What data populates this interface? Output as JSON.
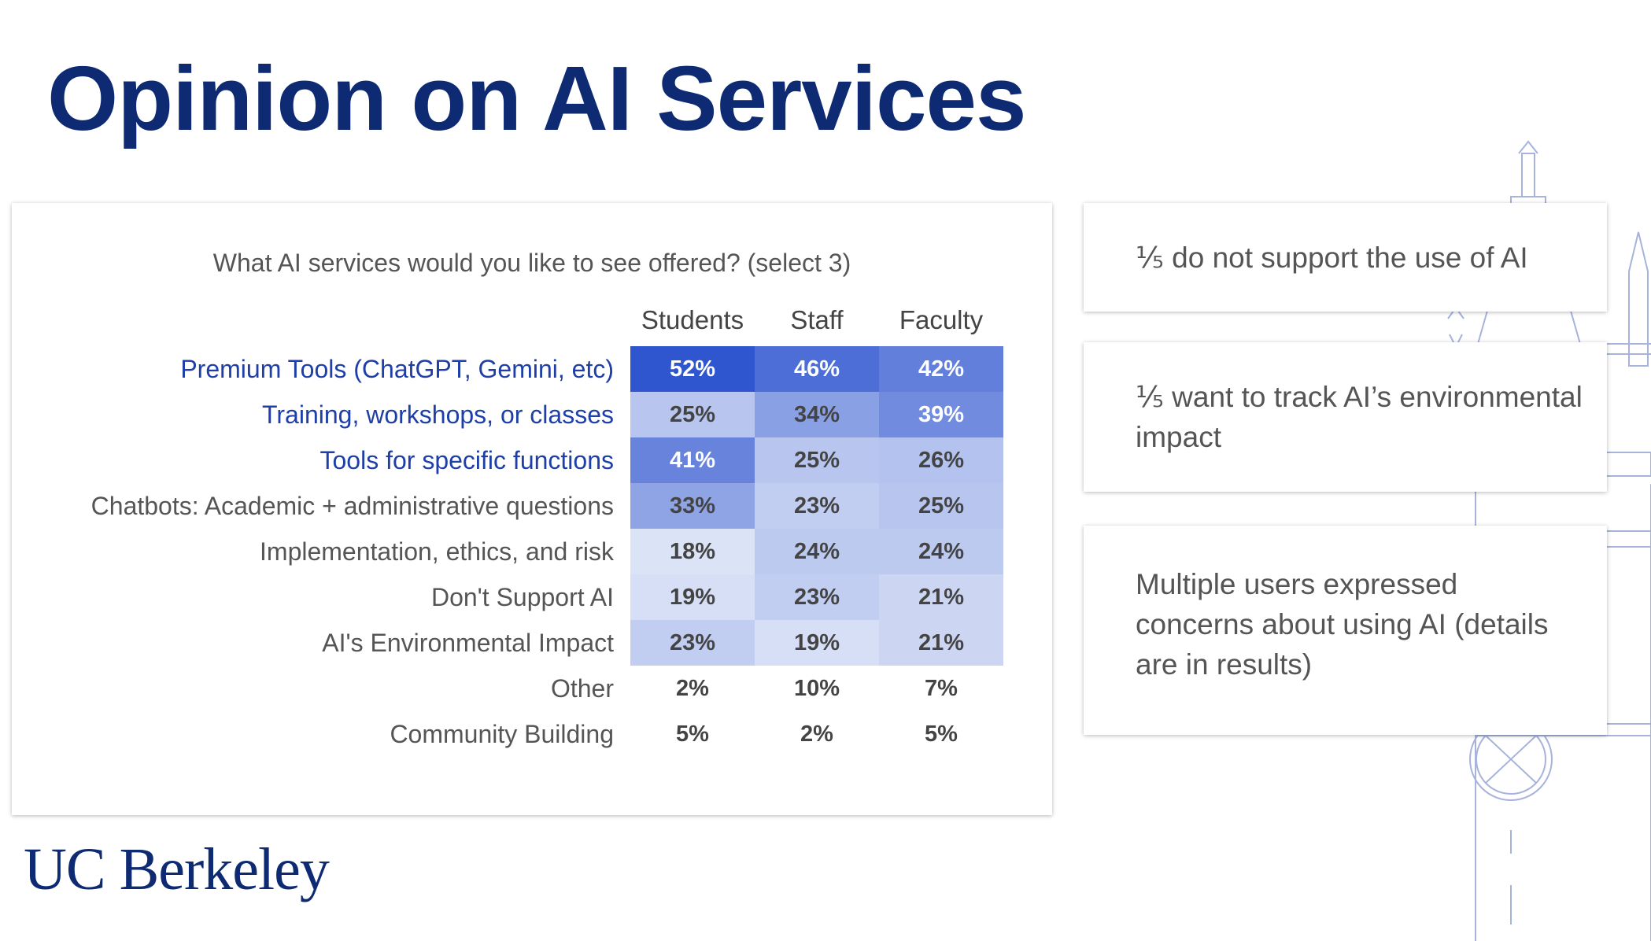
{
  "slide": {
    "title": "Opinion on AI Services",
    "logo_text": "UC Berkeley"
  },
  "callouts": [
    {
      "text": "⅕ do not support the use of AI"
    },
    {
      "text": "⅕ want to track AI’s environmental impact"
    },
    {
      "text": "Multiple users expressed concerns about using AI (details are in results)"
    }
  ],
  "colors": {
    "title": "#0d2a73",
    "highlight_label": "#1e3fa8",
    "heat_low": "#dbe3f7",
    "heat_high": "#2f55cf"
  },
  "chart_data": {
    "type": "table",
    "title": "What AI services would you like to see offered? (select 3)",
    "columns": [
      "Students",
      "Staff",
      "Faculty"
    ],
    "rows": [
      {
        "label": "Premium Tools (ChatGPT, Gemini, etc)",
        "highlight": true,
        "shaded": true,
        "values": [
          52,
          46,
          42
        ],
        "display": [
          "52%",
          "46%",
          "42%"
        ]
      },
      {
        "label": "Training, workshops, or classes",
        "highlight": true,
        "shaded": true,
        "values": [
          25,
          34,
          39
        ],
        "display": [
          "25%",
          "34%",
          "39%"
        ]
      },
      {
        "label": "Tools for specific functions",
        "highlight": true,
        "shaded": true,
        "values": [
          41,
          25,
          26
        ],
        "display": [
          "41%",
          "25%",
          "26%"
        ]
      },
      {
        "label": "Chatbots: Academic + administrative questions",
        "highlight": false,
        "shaded": true,
        "values": [
          33,
          23,
          25
        ],
        "display": [
          "33%",
          "23%",
          "25%"
        ]
      },
      {
        "label": "Implementation, ethics, and risk",
        "highlight": false,
        "shaded": true,
        "values": [
          18,
          24,
          24
        ],
        "display": [
          "18%",
          "24%",
          "24%"
        ]
      },
      {
        "label": "Don't Support AI",
        "highlight": false,
        "shaded": true,
        "values": [
          19,
          23,
          21
        ],
        "display": [
          "19%",
          "23%",
          "21%"
        ]
      },
      {
        "label": "AI's Environmental Impact",
        "highlight": false,
        "shaded": true,
        "values": [
          23,
          19,
          21
        ],
        "display": [
          "23%",
          "19%",
          "21%"
        ]
      },
      {
        "label": "Other",
        "highlight": false,
        "shaded": false,
        "values": [
          2,
          10,
          7
        ],
        "display": [
          "2%",
          "10%",
          "7%"
        ]
      },
      {
        "label": "Community Building",
        "highlight": false,
        "shaded": false,
        "values": [
          5,
          2,
          5
        ],
        "display": [
          "5%",
          "2%",
          "5%"
        ]
      }
    ]
  }
}
